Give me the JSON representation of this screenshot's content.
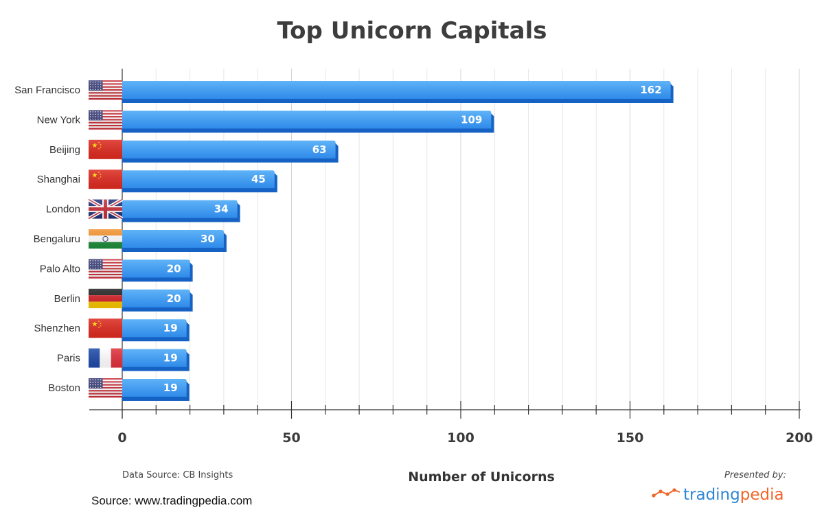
{
  "chart_data": {
    "type": "bar",
    "orientation": "horizontal",
    "title": "Top Unicorn Capitals",
    "xlabel": "Number of Unicorns",
    "ylabel": "",
    "categories": [
      "San Francisco",
      "New York",
      "Beijing",
      "Shanghai",
      "London",
      "Bengaluru",
      "Palo Alto",
      "Berlin",
      "Shenzhen",
      "Paris",
      "Boston"
    ],
    "values": [
      162,
      109,
      63,
      45,
      34,
      30,
      20,
      20,
      19,
      19,
      19
    ],
    "flags": [
      "us",
      "us",
      "cn",
      "cn",
      "uk",
      "in",
      "us",
      "de",
      "cn",
      "fr",
      "us"
    ],
    "xlim": [
      0,
      200
    ],
    "major_ticks": [
      0,
      50,
      100,
      150,
      200
    ],
    "minor_tick_step": 10,
    "grid": true,
    "bar_color": "#3d9cf0",
    "bar_shadow_color": "#1662c4"
  },
  "footer": {
    "data_source": "Data Source: CB Insights",
    "source": "Source: www.tradingpedia.com",
    "presented_by": "Presented by:",
    "brand_part1": "trading",
    "brand_part2": "pedia",
    "brand_color1": "#2f86d6",
    "brand_color2": "#f0662a"
  }
}
